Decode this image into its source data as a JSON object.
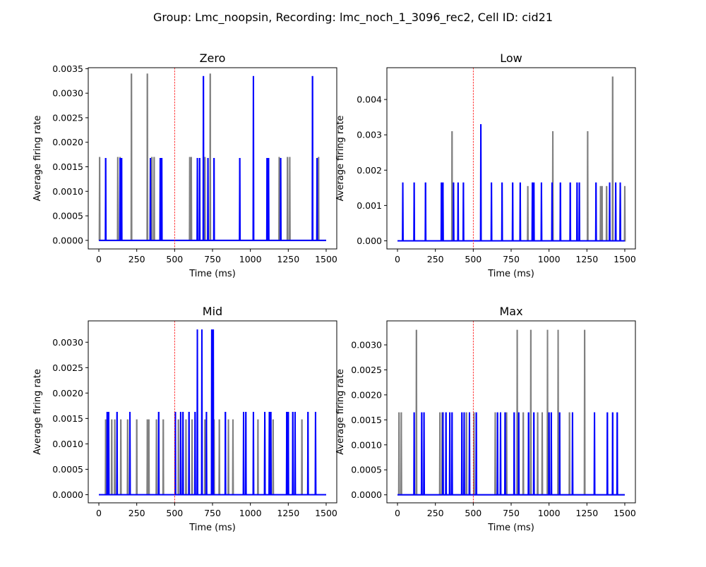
{
  "suptitle": "Group: Lmc_noopsin, Recording: lmc_noch_1_3096_rec2, Cell ID: cid21",
  "colors": {
    "series_a": "#808080",
    "series_b": "#0000ff",
    "stim_line": "#ff0000"
  },
  "chart_data": [
    {
      "type": "line",
      "title": "Zero",
      "xlabel": "Time (ms)",
      "ylabel": "Average firing rate",
      "xlim": [
        -70,
        1570
      ],
      "ylim": [
        -0.000175,
        0.00352
      ],
      "xticks": [
        0,
        250,
        500,
        750,
        1000,
        1250,
        1500
      ],
      "xtick_labels": [
        "0",
        "250",
        "500",
        "750",
        "1000",
        "1250",
        "1500"
      ],
      "yticks": [
        0,
        0.0005,
        0.001,
        0.0015,
        0.002,
        0.0025,
        0.003,
        0.0035
      ],
      "ytick_labels": [
        "0.0000",
        "0.0005",
        "0.0010",
        "0.0015",
        "0.0020",
        "0.0025",
        "0.0030",
        "0.0035"
      ],
      "stim_x": 500,
      "x_end": 1500,
      "series": [
        {
          "color": "#808080",
          "spikes": [
            [
              5,
              0.0017
            ],
            [
              125,
              0.0017
            ],
            [
              140,
              0.0017
            ],
            [
              215,
              0.0034
            ],
            [
              320,
              0.0034
            ],
            [
              350,
              0.0017
            ],
            [
              365,
              0.0017
            ],
            [
              600,
              0.0017
            ],
            [
              610,
              0.0017
            ],
            [
              700,
              0.0017
            ],
            [
              735,
              0.0034
            ],
            [
              1190,
              0.0017
            ],
            [
              1245,
              0.0017
            ],
            [
              1260,
              0.0017
            ],
            [
              1450,
              0.0017
            ]
          ]
        },
        {
          "color": "#0000ff",
          "spikes": [
            [
              45,
              0.00168
            ],
            [
              140,
              0.00168
            ],
            [
              150,
              0.00168
            ],
            [
              340,
              0.00168
            ],
            [
              405,
              0.00168
            ],
            [
              415,
              0.00168
            ],
            [
              650,
              0.00168
            ],
            [
              665,
              0.00168
            ],
            [
              690,
              0.00335
            ],
            [
              720,
              0.00168
            ],
            [
              760,
              0.00168
            ],
            [
              930,
              0.00168
            ],
            [
              1020,
              0.00335
            ],
            [
              1110,
              0.00168
            ],
            [
              1120,
              0.00168
            ],
            [
              1200,
              0.00168
            ],
            [
              1410,
              0.00335
            ],
            [
              1440,
              0.00168
            ]
          ]
        }
      ]
    },
    {
      "type": "line",
      "title": "Low",
      "xlabel": "Time (ms)",
      "ylabel": "Average firing rate",
      "xlim": [
        -70,
        1570
      ],
      "ylim": [
        -0.00023,
        0.0049
      ],
      "xticks": [
        0,
        250,
        500,
        750,
        1000,
        1250,
        1500
      ],
      "xtick_labels": [
        "0",
        "250",
        "500",
        "750",
        "1000",
        "1250",
        "1500"
      ],
      "yticks": [
        0,
        0.001,
        0.002,
        0.003,
        0.004
      ],
      "ytick_labels": [
        "0.000",
        "0.001",
        "0.002",
        "0.003",
        "0.004"
      ],
      "stim_x": 500,
      "x_end": 1500,
      "series": [
        {
          "color": "#808080",
          "spikes": [
            [
              360,
              0.0031
            ],
            [
              860,
              0.00155
            ],
            [
              1025,
              0.0031
            ],
            [
              1255,
              0.0031
            ],
            [
              1340,
              0.00155
            ],
            [
              1350,
              0.00155
            ],
            [
              1380,
              0.00155
            ],
            [
              1420,
              0.00465
            ],
            [
              1470,
              0.00155
            ],
            [
              1500,
              0.00155
            ]
          ]
        },
        {
          "color": "#0000ff",
          "spikes": [
            [
              35,
              0.00165
            ],
            [
              110,
              0.00165
            ],
            [
              185,
              0.00165
            ],
            [
              290,
              0.00165
            ],
            [
              300,
              0.00165
            ],
            [
              370,
              0.00165
            ],
            [
              400,
              0.00165
            ],
            [
              435,
              0.00165
            ],
            [
              550,
              0.0033
            ],
            [
              620,
              0.00165
            ],
            [
              690,
              0.00165
            ],
            [
              760,
              0.00165
            ],
            [
              810,
              0.00165
            ],
            [
              890,
              0.00165
            ],
            [
              900,
              0.00165
            ],
            [
              950,
              0.00165
            ],
            [
              1020,
              0.00165
            ],
            [
              1075,
              0.00165
            ],
            [
              1140,
              0.00165
            ],
            [
              1185,
              0.00165
            ],
            [
              1200,
              0.00165
            ],
            [
              1310,
              0.00165
            ],
            [
              1400,
              0.00165
            ],
            [
              1440,
              0.00165
            ],
            [
              1470,
              0.00165
            ]
          ]
        }
      ]
    },
    {
      "type": "line",
      "title": "Mid",
      "xlabel": "Time (ms)",
      "ylabel": "Average firing rate",
      "xlim": [
        -70,
        1570
      ],
      "ylim": [
        -0.00016,
        0.00342
      ],
      "xticks": [
        0,
        250,
        500,
        750,
        1000,
        1250,
        1500
      ],
      "xtick_labels": [
        "0",
        "250",
        "500",
        "750",
        "1000",
        "1250",
        "1500"
      ],
      "yticks": [
        0,
        0.0005,
        0.001,
        0.0015,
        0.002,
        0.0025,
        0.003
      ],
      "ytick_labels": [
        "0.0000",
        "0.0005",
        "0.0010",
        "0.0015",
        "0.0020",
        "0.0025",
        "0.0030"
      ],
      "stim_x": 500,
      "x_end": 1500,
      "series": [
        {
          "color": "#808080",
          "spikes": [
            [
              45,
              0.00148
            ],
            [
              85,
              0.00148
            ],
            [
              105,
              0.00148
            ],
            [
              145,
              0.00148
            ],
            [
              190,
              0.00148
            ],
            [
              250,
              0.00148
            ],
            [
              320,
              0.00148
            ],
            [
              330,
              0.00148
            ],
            [
              380,
              0.00148
            ],
            [
              425,
              0.00148
            ],
            [
              525,
              0.00148
            ],
            [
              575,
              0.00148
            ],
            [
              615,
              0.00148
            ],
            [
              700,
              0.00148
            ],
            [
              760,
              0.00148
            ],
            [
              795,
              0.00148
            ],
            [
              855,
              0.00148
            ],
            [
              885,
              0.00148
            ],
            [
              1050,
              0.00148
            ],
            [
              1095,
              0.00148
            ],
            [
              1150,
              0.00148
            ],
            [
              1340,
              0.00148
            ]
          ]
        },
        {
          "color": "#0000ff",
          "spikes": [
            [
              55,
              0.00163
            ],
            [
              65,
              0.00163
            ],
            [
              120,
              0.00163
            ],
            [
              205,
              0.00163
            ],
            [
              395,
              0.00163
            ],
            [
              505,
              0.00163
            ],
            [
              540,
              0.00163
            ],
            [
              555,
              0.00163
            ],
            [
              595,
              0.00163
            ],
            [
              635,
              0.00163
            ],
            [
              650,
              0.00325
            ],
            [
              680,
              0.00325
            ],
            [
              710,
              0.00163
            ],
            [
              745,
              0.00325
            ],
            [
              755,
              0.00325
            ],
            [
              835,
              0.00163
            ],
            [
              955,
              0.00163
            ],
            [
              970,
              0.00163
            ],
            [
              1020,
              0.00163
            ],
            [
              1095,
              0.00163
            ],
            [
              1125,
              0.00163
            ],
            [
              1135,
              0.00163
            ],
            [
              1240,
              0.00163
            ],
            [
              1250,
              0.00163
            ],
            [
              1280,
              0.00163
            ],
            [
              1295,
              0.00163
            ],
            [
              1380,
              0.00163
            ],
            [
              1430,
              0.00163
            ]
          ]
        }
      ]
    },
    {
      "type": "line",
      "title": "Max",
      "xlabel": "Time (ms)",
      "ylabel": "Average firing rate",
      "xlim": [
        -70,
        1570
      ],
      "ylim": [
        -0.00016,
        0.00348
      ],
      "xticks": [
        0,
        250,
        500,
        750,
        1000,
        1250,
        1500
      ],
      "xtick_labels": [
        "0",
        "250",
        "500",
        "750",
        "1000",
        "1250",
        "1500"
      ],
      "yticks": [
        0,
        0.0005,
        0.001,
        0.0015,
        0.002,
        0.0025,
        0.003
      ],
      "ytick_labels": [
        "0.0000",
        "0.0005",
        "0.0010",
        "0.0015",
        "0.0020",
        "0.0025",
        "0.0030"
      ],
      "stim_x": 500,
      "x_end": 1500,
      "series": [
        {
          "color": "#808080",
          "spikes": [
            [
              10,
              0.00165
            ],
            [
              25,
              0.00165
            ],
            [
              125,
              0.0033
            ],
            [
              280,
              0.00165
            ],
            [
              295,
              0.00165
            ],
            [
              300,
              0.00165
            ],
            [
              455,
              0.00165
            ],
            [
              505,
              0.00165
            ],
            [
              645,
              0.00165
            ],
            [
              720,
              0.00165
            ],
            [
              790,
              0.0033
            ],
            [
              830,
              0.00165
            ],
            [
              880,
              0.0033
            ],
            [
              925,
              0.00165
            ],
            [
              955,
              0.00165
            ],
            [
              990,
              0.0033
            ],
            [
              1060,
              0.0033
            ],
            [
              1135,
              0.00165
            ],
            [
              1235,
              0.0033
            ]
          ]
        },
        {
          "color": "#0000ff",
          "spikes": [
            [
              110,
              0.00165
            ],
            [
              160,
              0.00165
            ],
            [
              175,
              0.00165
            ],
            [
              300,
              0.00165
            ],
            [
              320,
              0.00165
            ],
            [
              345,
              0.00165
            ],
            [
              360,
              0.00165
            ],
            [
              425,
              0.00165
            ],
            [
              440,
              0.00165
            ],
            [
              475,
              0.00165
            ],
            [
              520,
              0.00165
            ],
            [
              660,
              0.00165
            ],
            [
              680,
              0.00165
            ],
            [
              710,
              0.00165
            ],
            [
              770,
              0.00165
            ],
            [
              800,
              0.00165
            ],
            [
              865,
              0.00165
            ],
            [
              900,
              0.00165
            ],
            [
              1000,
              0.00165
            ],
            [
              1015,
              0.00165
            ],
            [
              1070,
              0.00165
            ],
            [
              1155,
              0.00165
            ],
            [
              1300,
              0.00165
            ],
            [
              1385,
              0.00165
            ],
            [
              1420,
              0.00165
            ],
            [
              1450,
              0.00165
            ]
          ]
        }
      ]
    }
  ]
}
